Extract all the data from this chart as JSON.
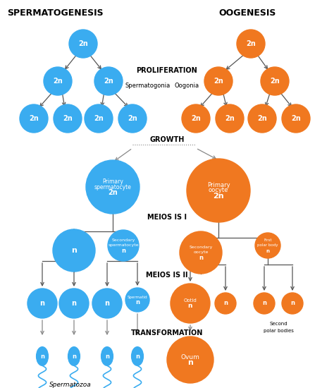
{
  "blue": "#3AACF0",
  "orange": "#F07820",
  "bg_color": "white",
  "title_left": "SPERMATOGENESIS",
  "title_right": "OOGENESIS",
  "label_proliferation": "PROLIFERATION",
  "label_spermatogonia": "Spermatogonia",
  "label_oogonia": "Oogonia",
  "label_growth": "GROWTH",
  "label_meiosis1": "MEIOS IS I",
  "label_meiosis2": "MEIOS IS II",
  "label_transformation": "TRANSFORMATION",
  "label_spermatozoa": "Spermatozoa"
}
